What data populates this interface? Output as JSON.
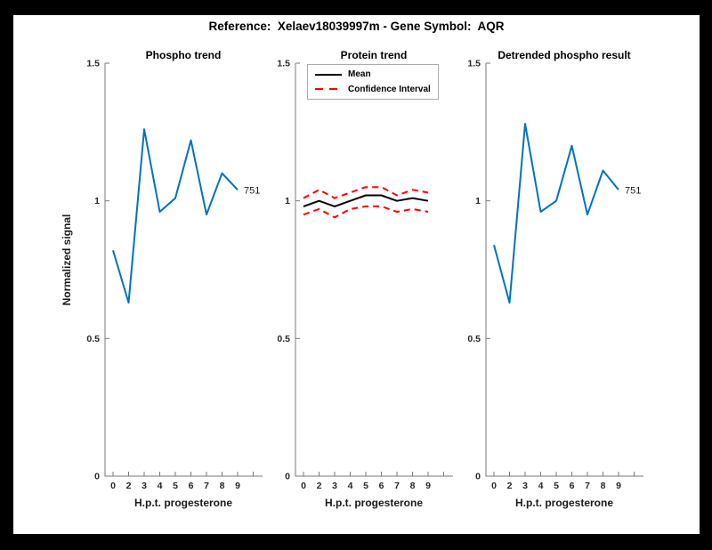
{
  "figure": {
    "title": "Reference:  Xelaev18039997m - Gene Symbol:  AQR",
    "background": "#ffffff",
    "page_background": "#000000"
  },
  "colors": {
    "phospho_line": "#0072BD",
    "mean_line": "#000000",
    "confidence_line": "#FF0000",
    "axis_line": "#7a7a7a",
    "tick_text": "#262626",
    "label_text": "#1a1a1a"
  },
  "chart_data": [
    {
      "type": "line",
      "title": "Phospho trend",
      "xlabel": "H.p.t. progesterone",
      "ylabel": "Normalized signal",
      "categories": [
        "0",
        "2",
        "3",
        "4",
        "5",
        "6",
        "7",
        "8",
        "9"
      ],
      "ylim": [
        0,
        1.5
      ],
      "yticks": [
        0,
        0.5,
        1,
        1.5
      ],
      "ytick_labels": [
        "0",
        "0.5",
        "1",
        "1.5"
      ],
      "grid": false,
      "legend": null,
      "series": [
        {
          "name": "Phospho trend line",
          "color": "#0072BD",
          "style": "solid",
          "values": [
            0.82,
            0.63,
            1.26,
            0.96,
            1.01,
            1.22,
            0.95,
            1.1,
            1.04
          ],
          "end_label": "751"
        }
      ]
    },
    {
      "type": "line",
      "title": "Protein trend",
      "xlabel": "H.p.t. progesterone",
      "ylabel": "",
      "categories": [
        "0",
        "2",
        "3",
        "4",
        "5",
        "6",
        "7",
        "8",
        "9"
      ],
      "ylim": [
        0,
        1.5
      ],
      "yticks": [
        0,
        0.5,
        1,
        1.5
      ],
      "ytick_labels": [
        "0",
        "0.5",
        "1",
        "1.5"
      ],
      "grid": false,
      "legend": {
        "position": "top-left",
        "entries": [
          {
            "label": "Mean",
            "color": "#000000",
            "style": "solid"
          },
          {
            "label": "Confidence Interval",
            "color": "#FF0000",
            "style": "dashed"
          }
        ]
      },
      "series": [
        {
          "name": "Confidence interval upper",
          "color": "#FF0000",
          "style": "dashed",
          "values": [
            1.01,
            1.04,
            1.01,
            1.03,
            1.05,
            1.05,
            1.02,
            1.04,
            1.03
          ],
          "end_label": null
        },
        {
          "name": "Confidence interval lower",
          "color": "#FF0000",
          "style": "dashed",
          "values": [
            0.95,
            0.97,
            0.94,
            0.97,
            0.98,
            0.98,
            0.96,
            0.97,
            0.96
          ],
          "end_label": null
        },
        {
          "name": "Mean line",
          "color": "#000000",
          "style": "solid",
          "values": [
            0.98,
            1.0,
            0.98,
            1.0,
            1.02,
            1.02,
            1.0,
            1.01,
            1.0
          ],
          "end_label": null
        }
      ]
    },
    {
      "type": "line",
      "title": "Detrended phospho result",
      "xlabel": "H.p.t. progesterone",
      "ylabel": "",
      "categories": [
        "0",
        "2",
        "3",
        "4",
        "5",
        "6",
        "7",
        "8",
        "9"
      ],
      "ylim": [
        0,
        1.5
      ],
      "yticks": [
        0,
        0.5,
        1,
        1.5
      ],
      "ytick_labels": [
        "0",
        "0.5",
        "1",
        "1.5"
      ],
      "grid": false,
      "legend": null,
      "series": [
        {
          "name": "Detrended phospho line",
          "color": "#0072BD",
          "style": "solid",
          "values": [
            0.84,
            0.63,
            1.28,
            0.96,
            1.0,
            1.2,
            0.95,
            1.11,
            1.04
          ],
          "end_label": "751"
        }
      ]
    }
  ]
}
